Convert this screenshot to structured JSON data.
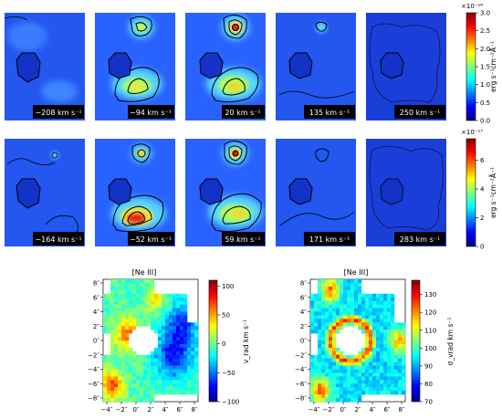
{
  "rows": [
    {
      "velocities": [
        "−208 km s⁻¹",
        "−94 km s⁻¹",
        "20 km s⁻¹",
        "135 km s⁻¹",
        "250 km s⁻¹"
      ],
      "colorbar": {
        "label": "erg s⁻¹cm⁻²Å⁻¹",
        "multiplier": "×10⁻¹⁶",
        "ticks": [
          "0.0",
          "0.5",
          "1.0",
          "1.5",
          "2.0",
          "2.5",
          "3.0"
        ],
        "range": [
          0,
          3.0
        ]
      }
    },
    {
      "velocities": [
        "−164 km s⁻¹",
        "−52 km s⁻¹",
        "59 km s⁻¹",
        "171 km s⁻¹",
        "283 km s⁻¹"
      ],
      "colorbar": {
        "label": "erg s⁻¹cm⁻²Å⁻¹",
        "multiplier": "×10⁻¹⁷",
        "ticks": [
          "0",
          "2",
          "4",
          "6"
        ],
        "range": [
          0,
          7.5
        ]
      }
    }
  ],
  "bottom_panels": [
    {
      "title": "[Ne III]",
      "colorbar_label": "v_rad km s⁻¹",
      "colorbar_ticks": [
        "−100",
        "−50",
        "0",
        "50",
        "100"
      ],
      "colorbar_range": [
        -100,
        110
      ],
      "colormap": "jet"
    },
    {
      "title": "[Ne III]",
      "colorbar_label": "σ_vrad km s⁻¹",
      "colorbar_ticks": [
        "70",
        "80",
        "90",
        "100",
        "110",
        "120",
        "130"
      ],
      "colorbar_range": [
        70,
        138
      ],
      "colormap": "jet"
    }
  ],
  "axes": {
    "x_ticks": [
      "−4″",
      "−2″",
      "0″",
      "2″",
      "4″",
      "6″",
      "8″"
    ],
    "y_ticks": [
      "8″",
      "6″",
      "4″",
      "2″",
      "0″",
      "−2″",
      "−4″",
      "−6″",
      "−8″"
    ]
  },
  "chart_data": [
    {
      "type": "heatmap",
      "description_row": 1,
      "velocities_kms": [
        -208,
        -94,
        20,
        135,
        250
      ],
      "colorbar_ticks": [
        0.0,
        0.5,
        1.0,
        1.5,
        2.0,
        2.5,
        3.0
      ],
      "colorbar_scale": "1e-16",
      "colorbar_label": "erg s⁻¹cm⁻²Å⁻¹"
    },
    {
      "type": "heatmap",
      "description_row": 2,
      "velocities_kms": [
        -164,
        -52,
        59,
        171,
        283
      ],
      "colorbar_ticks": [
        0,
        2,
        4,
        6
      ],
      "colorbar_scale": "1e-17",
      "colorbar_label": "erg s⁻¹cm⁻²Å⁻¹"
    },
    {
      "type": "heatmap",
      "title": "[Ne III]",
      "x_ticks_arcsec": [
        -4,
        -2,
        0,
        2,
        4,
        6,
        8
      ],
      "y_ticks_arcsec": [
        8,
        6,
        4,
        2,
        0,
        -2,
        -4,
        -6,
        -8
      ],
      "colorbar_label": "v_rad km s⁻¹",
      "colorbar_ticks": [
        -100,
        -50,
        0,
        50,
        100
      ]
    },
    {
      "type": "heatmap",
      "title": "[Ne III]",
      "x_ticks_arcsec": [
        -4,
        -2,
        0,
        2,
        4,
        6,
        8
      ],
      "y_ticks_arcsec": [
        8,
        6,
        4,
        2,
        0,
        -2,
        -4,
        -6,
        -8
      ],
      "colorbar_label": "σ_vrad km s⁻¹",
      "colorbar_ticks": [
        70,
        80,
        90,
        100,
        110,
        120,
        130
      ]
    }
  ]
}
